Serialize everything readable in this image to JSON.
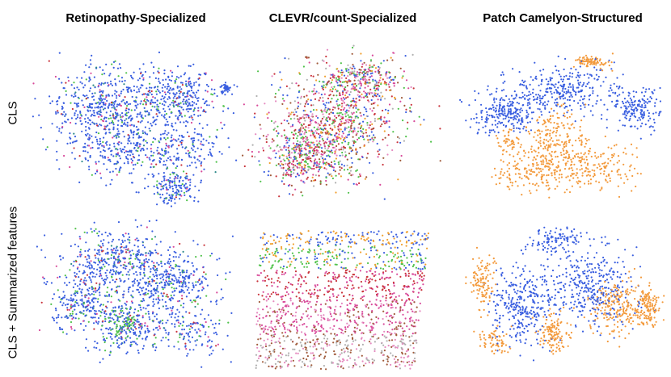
{
  "figure": {
    "column_titles": [
      "Retinopathy-Specialized",
      "CLEVR/count-Specialized",
      "Patch Camelyon-Structured"
    ],
    "row_labels": [
      "CLS",
      "CLS + Summarized features"
    ]
  },
  "chart_data": [
    {
      "type": "scatter",
      "title": "Retinopathy-Specialized",
      "row": "CLS",
      "xlabel": "",
      "ylabel": "",
      "palette": [
        "#3a5fe0",
        "#4fc24a",
        "#d84a9a",
        "#c9343c",
        "#2f8a8a"
      ],
      "weights": [
        0.82,
        0.08,
        0.05,
        0.03,
        0.02
      ],
      "axes": "off"
    },
    {
      "type": "scatter",
      "title": "CLEVR/count-Specialized",
      "row": "CLS",
      "xlabel": "",
      "ylabel": "",
      "palette": [
        "#3a5fe0",
        "#4fc24a",
        "#d84a9a",
        "#c9343c",
        "#f0a030",
        "#a05a3a",
        "#b0b0b0",
        "#e58ac0"
      ],
      "weights": [
        0.16,
        0.14,
        0.16,
        0.16,
        0.08,
        0.1,
        0.08,
        0.12
      ],
      "axes": "off"
    },
    {
      "type": "scatter",
      "title": "Patch Camelyon-Structured",
      "row": "CLS",
      "xlabel": "",
      "ylabel": "",
      "palette": [
        "#3a5fe0",
        "#f39a3c"
      ],
      "weights": [
        0.62,
        0.38
      ],
      "axes": "off"
    },
    {
      "type": "scatter",
      "title": "Retinopathy-Specialized",
      "row": "CLS + Summarized features",
      "xlabel": "",
      "ylabel": "",
      "palette": [
        "#3a5fe0",
        "#4fc24a",
        "#d84a9a",
        "#c9343c",
        "#2f8a8a"
      ],
      "weights": [
        0.78,
        0.1,
        0.06,
        0.04,
        0.02
      ],
      "axes": "off"
    },
    {
      "type": "scatter",
      "title": "CLEVR/count-Specialized",
      "row": "CLS + Summarized features",
      "xlabel": "",
      "ylabel": "",
      "palette": [
        "#3a5fe0",
        "#4fc24a",
        "#d84a9a",
        "#c9343c",
        "#f0a030",
        "#a05a3a",
        "#b0b0b0",
        "#e58ac0"
      ],
      "weights": [
        0.14,
        0.14,
        0.16,
        0.16,
        0.1,
        0.1,
        0.1,
        0.1
      ],
      "axes": "off"
    },
    {
      "type": "scatter",
      "title": "Patch Camelyon-Structured",
      "row": "CLS + Summarized features",
      "xlabel": "",
      "ylabel": "",
      "palette": [
        "#3a5fe0",
        "#f39a3c"
      ],
      "weights": [
        0.6,
        0.4
      ],
      "axes": "off"
    }
  ]
}
